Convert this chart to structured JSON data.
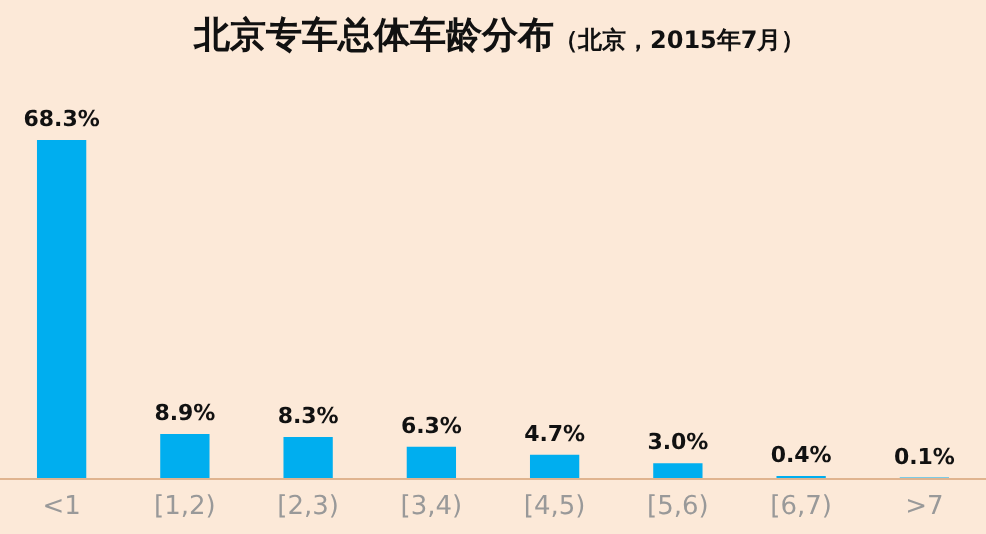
{
  "chart_data": {
    "type": "bar",
    "title": "北京专车总体车龄分布",
    "subtitle": "（北京，2015年7月）",
    "categories": [
      "<1",
      "[1,2)",
      "[2,3)",
      "[3,4)",
      "[4,5)",
      "[5,6)",
      "[6,7)",
      ">7"
    ],
    "values": [
      68.3,
      8.9,
      8.3,
      6.3,
      4.7,
      3.0,
      0.4,
      0.1
    ],
    "value_labels": [
      "68.3%",
      "8.9%",
      "8.3%",
      "6.3%",
      "4.7%",
      "3.0%",
      "0.4%",
      "0.1%"
    ],
    "color": "#00aeef"
  }
}
